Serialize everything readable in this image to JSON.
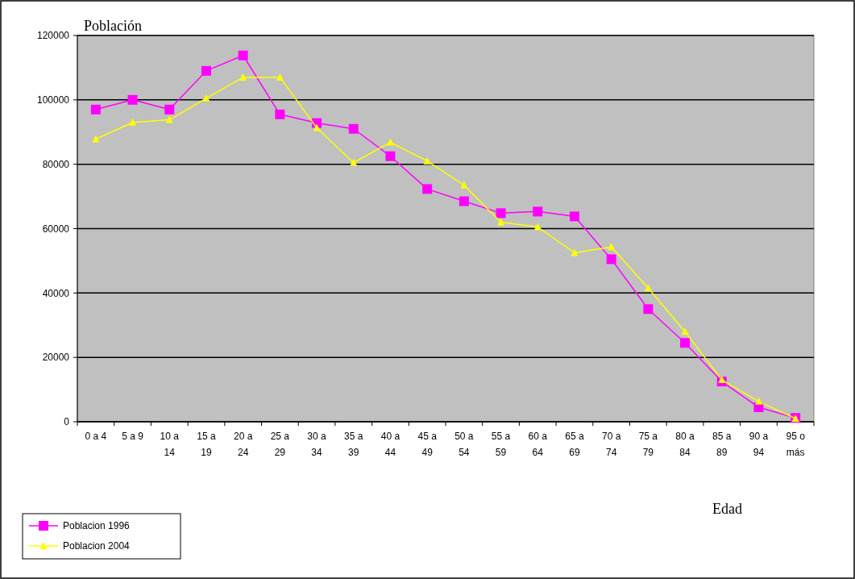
{
  "chart_data": {
    "type": "line",
    "ylabel": "Población",
    "xlabel": "Edad",
    "categories": [
      "0 a 4",
      "5 a 9",
      "10 a 14",
      "15 a 19",
      "20 a 24",
      "25 a 29",
      "30 a 34",
      "35 a 39",
      "40 a 44",
      "45 a 49",
      "50 a 54",
      "55 a 59",
      "60 a 64",
      "65 a 69",
      "70 a 74",
      "75 a 79",
      "80 a 84",
      "85 a 89",
      "90 a 94",
      "95 o más"
    ],
    "series": [
      {
        "name": "Poblacion 1996",
        "color": "#ff00ff",
        "marker": "square",
        "values": [
          97000,
          100000,
          97000,
          109000,
          113800,
          95500,
          92800,
          91000,
          82500,
          72300,
          68500,
          64800,
          65300,
          63800,
          50500,
          35000,
          24500,
          12500,
          4500,
          1200
        ]
      },
      {
        "name": "Poblacion 2004",
        "color": "#ffff00",
        "marker": "triangle",
        "values": [
          87800,
          93000,
          93800,
          100500,
          107000,
          107000,
          91300,
          80500,
          86800,
          81000,
          73500,
          62000,
          60500,
          52500,
          54300,
          41500,
          28000,
          13000,
          6300,
          1000
        ]
      }
    ],
    "ylim": [
      0,
      120000
    ],
    "yticks": [
      0,
      20000,
      40000,
      60000,
      80000,
      100000,
      120000
    ],
    "grid": "y",
    "legend": "bottom left"
  }
}
